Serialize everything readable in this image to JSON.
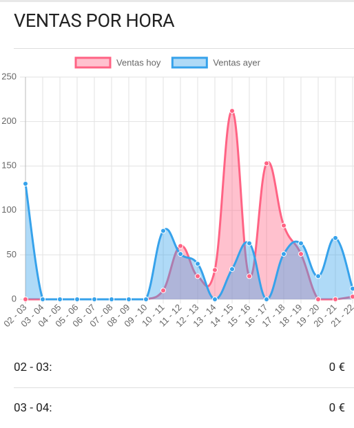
{
  "header": {
    "title": "VENTAS POR HORA"
  },
  "chart_data": {
    "type": "area",
    "categories": [
      "02 - 03",
      "03 - 04",
      "04 - 05",
      "05 - 06",
      "06 - 07",
      "07 - 08",
      "08 - 09",
      "09 - 10",
      "10 - 11",
      "11 - 12",
      "12 - 13",
      "13 - 14",
      "14 - 15",
      "15 - 16",
      "16 - 17",
      "17 - 18",
      "18 - 19",
      "19 - 20",
      "20 - 21",
      "21 - 22"
    ],
    "series": [
      {
        "name": "Ventas hoy",
        "color": "#ff6384",
        "values": [
          0,
          0,
          0,
          0,
          0,
          0,
          0,
          0,
          10,
          60,
          26,
          33,
          212,
          26,
          153,
          83,
          51,
          0,
          0,
          3
        ]
      },
      {
        "name": "Ventas ayer",
        "color": "#36a2eb",
        "values": [
          130,
          0,
          0,
          0,
          0,
          0,
          0,
          0,
          77,
          51,
          40,
          0,
          34,
          63,
          0,
          51,
          63,
          26,
          69,
          12
        ]
      }
    ],
    "ylim": [
      0,
      250
    ],
    "yticks": [
      0,
      50,
      100,
      150,
      200,
      250
    ],
    "grid": true,
    "legend": "top"
  },
  "rows": [
    {
      "label": "02 - 03:",
      "value": "0 €"
    },
    {
      "label": "03 - 04:",
      "value": "0 €"
    }
  ]
}
